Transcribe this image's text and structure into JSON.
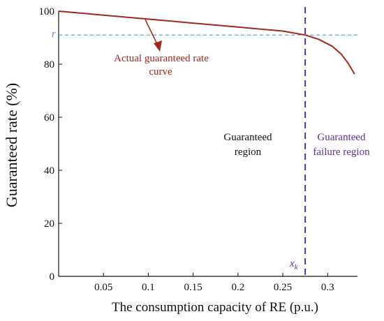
{
  "chart_data": {
    "type": "line",
    "xlabel": "The consumption capacity of RE (p.u.)",
    "ylabel": "Guaranteed rate (%)",
    "xlim": [
      0,
      0.3333
    ],
    "ylim": [
      0,
      100
    ],
    "x_ticks": [
      "0.05",
      "0.1",
      "0.15",
      "0.2",
      "0.25",
      "0.3"
    ],
    "y_ticks": [
      "0",
      "20",
      "40",
      "60",
      "80",
      "100"
    ],
    "grid": false,
    "series": [
      {
        "name": "Actual guaranteed rate curve",
        "color": "#a0281f",
        "x": [
          0,
          0.05,
          0.1,
          0.15,
          0.2,
          0.25,
          0.275,
          0.29,
          0.305,
          0.315,
          0.323,
          0.33
        ],
        "y": [
          100,
          98.5,
          97,
          95.5,
          94,
          92.5,
          91,
          89.4,
          86.8,
          83.9,
          80.3,
          76.3
        ]
      }
    ],
    "reference_lines": {
      "r": {
        "label": "r",
        "y": 91,
        "color": "#5b8fd6",
        "style": "dashed"
      },
      "x_k": {
        "label": "x",
        "subscript": "k",
        "x": 0.275,
        "color": "#5b2f99",
        "style": "dashed"
      }
    },
    "annotations": {
      "curve_label_line1": "Actual guaranteed rate",
      "curve_label_line2": "curve",
      "guaranteed_region_line1": "Guaranteed",
      "guaranteed_region_line2": "region",
      "failure_region_line1": "Guaranteed",
      "failure_region_line2": "failure region"
    },
    "colors": {
      "axis": "#111111",
      "curve": "#a0281f",
      "r_line": "#5b8fd6",
      "xk_line": "#5b2f99",
      "failure_text": "#5b2f99"
    }
  }
}
